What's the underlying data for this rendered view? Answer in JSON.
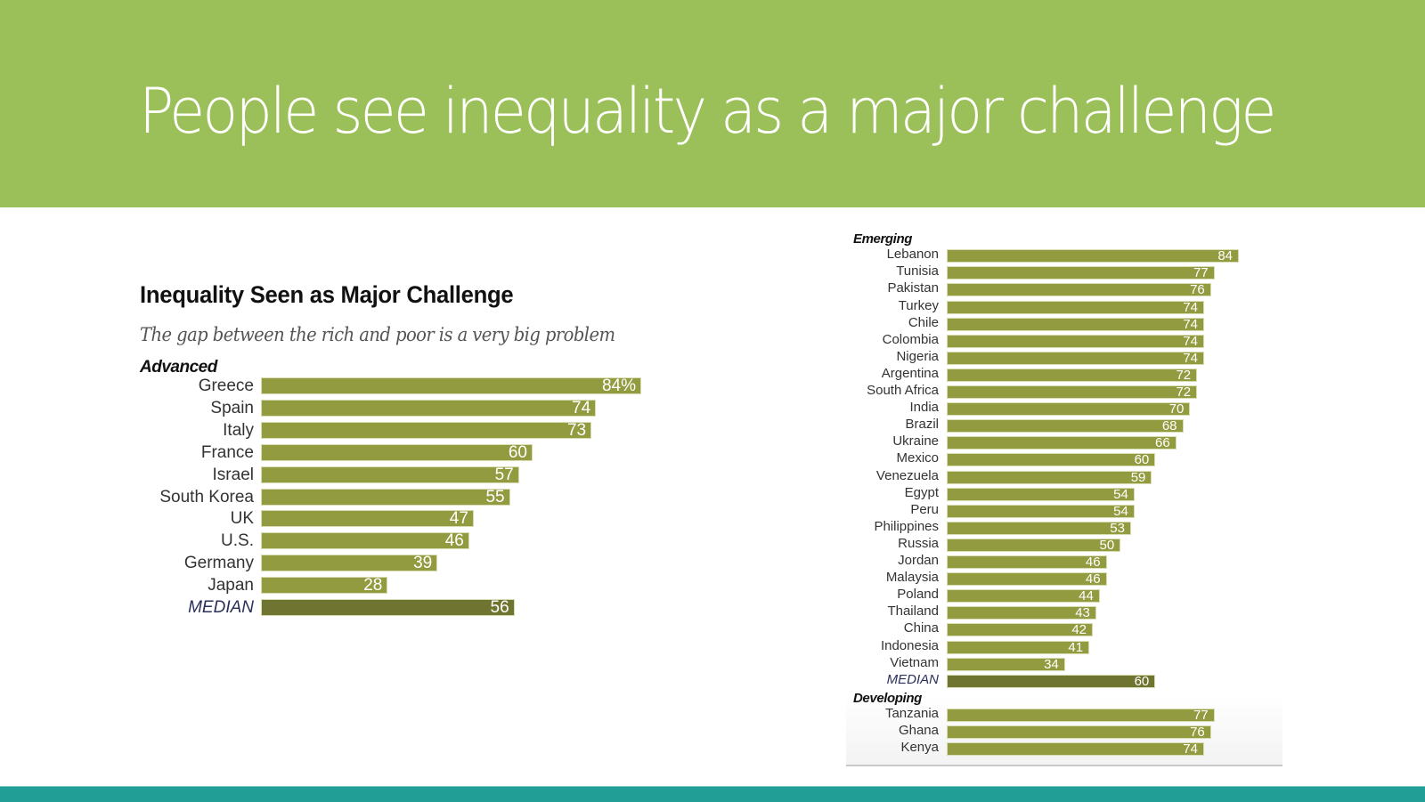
{
  "slide": {
    "title": "People see inequality as a major challenge",
    "colors": {
      "header": "#9bc05a",
      "footer": "#219e96",
      "bar": "#939b41",
      "median_bar": "#6f7530",
      "title_text": "#ffffff"
    }
  },
  "chart_data": [
    {
      "type": "bar",
      "orientation": "horizontal",
      "title": "Inequality Seen as Major Challenge",
      "subtitle": "The gap between the rich and poor  is a very big problem",
      "group": "Advanced",
      "categories": [
        "Greece",
        "Spain",
        "Italy",
        "France",
        "Israel",
        "South Korea",
        "UK",
        "U.S.",
        "Germany",
        "Japan",
        "MEDIAN"
      ],
      "values": [
        84,
        74,
        73,
        60,
        57,
        55,
        47,
        46,
        39,
        28,
        56
      ],
      "value_labels": [
        "84%",
        "74",
        "73",
        "60",
        "57",
        "55",
        "47",
        "46",
        "39",
        "28",
        "56"
      ],
      "units": "%",
      "xlim": [
        0,
        84
      ]
    },
    {
      "type": "bar",
      "orientation": "horizontal",
      "groups": [
        {
          "name": "Emerging",
          "categories": [
            "Lebanon",
            "Tunisia",
            "Pakistan",
            "Turkey",
            "Chile",
            "Colombia",
            "Nigeria",
            "Argentina",
            "South Africa",
            "India",
            "Brazil",
            "Ukraine",
            "Mexico",
            "Venezuela",
            "Egypt",
            "Peru",
            "Philippines",
            "Russia",
            "Jordan",
            "Malaysia",
            "Poland",
            "Thailand",
            "China",
            "Indonesia",
            "Vietnam",
            "MEDIAN"
          ],
          "values": [
            84,
            77,
            76,
            74,
            74,
            74,
            74,
            72,
            72,
            70,
            68,
            66,
            60,
            59,
            54,
            54,
            53,
            50,
            46,
            46,
            44,
            43,
            42,
            41,
            34,
            60
          ]
        },
        {
          "name": "Developing",
          "categories": [
            "Tanzania",
            "Ghana",
            "Kenya"
          ],
          "values": [
            77,
            76,
            74
          ]
        }
      ],
      "units": "%",
      "xlim": [
        0,
        84
      ]
    }
  ]
}
